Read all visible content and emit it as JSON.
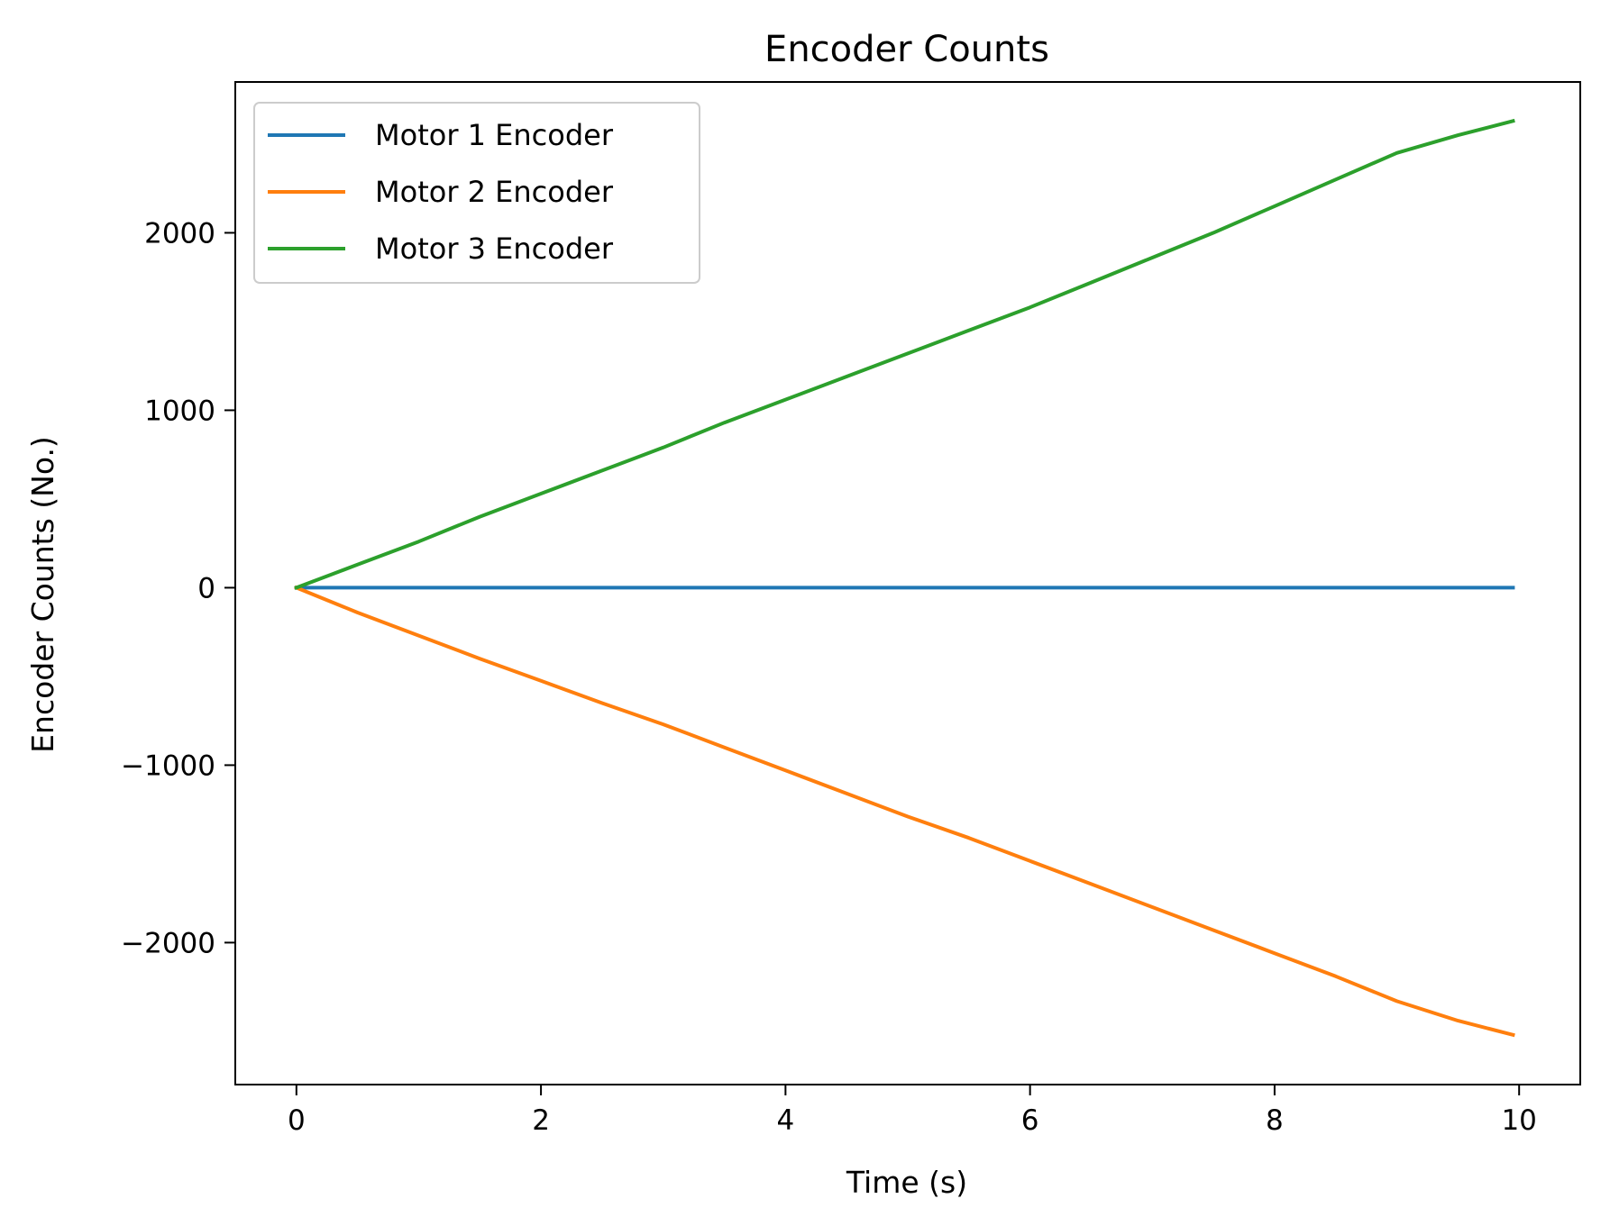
{
  "chart_data": {
    "type": "line",
    "title": "Encoder Counts",
    "xlabel": "Time (s)",
    "ylabel": "Encoder Counts (No.)",
    "xlim": [
      -0.5,
      10.5
    ],
    "ylim": [
      -2800,
      2850
    ],
    "xticks": [
      0,
      2,
      4,
      6,
      8,
      10
    ],
    "xtick_labels": [
      "0",
      "2",
      "4",
      "6",
      "8",
      "10"
    ],
    "yticks": [
      -2000,
      -1000,
      0,
      1000,
      2000
    ],
    "ytick_labels": [
      "−2000",
      "−1000",
      "0",
      "1000",
      "2000"
    ],
    "grid": false,
    "legend_position": "upper-left",
    "x": [
      0,
      0.5,
      1,
      1.5,
      2,
      2.5,
      3,
      3.5,
      4,
      4.5,
      5,
      5.5,
      6,
      6.5,
      7,
      7.5,
      8,
      8.5,
      9,
      9.5,
      9.95
    ],
    "series": [
      {
        "name": "Motor 1 Encoder",
        "color": "#1f77b4",
        "values": [
          0,
          0,
          0,
          0,
          0,
          0,
          0,
          0,
          0,
          0,
          0,
          0,
          0,
          0,
          0,
          0,
          0,
          0,
          0,
          0,
          0
        ]
      },
      {
        "name": "Motor 2 Encoder",
        "color": "#ff7f0e",
        "values": [
          0,
          -140,
          -270,
          -400,
          -525,
          -650,
          -770,
          -900,
          -1030,
          -1160,
          -1290,
          -1410,
          -1540,
          -1670,
          -1800,
          -1930,
          -2060,
          -2190,
          -2330,
          -2440,
          -2520
        ]
      },
      {
        "name": "Motor 3 Encoder",
        "color": "#2ca02c",
        "values": [
          0,
          130,
          260,
          400,
          530,
          660,
          790,
          930,
          1060,
          1190,
          1320,
          1450,
          1580,
          1720,
          1860,
          2000,
          2150,
          2300,
          2450,
          2550,
          2630
        ]
      }
    ]
  }
}
